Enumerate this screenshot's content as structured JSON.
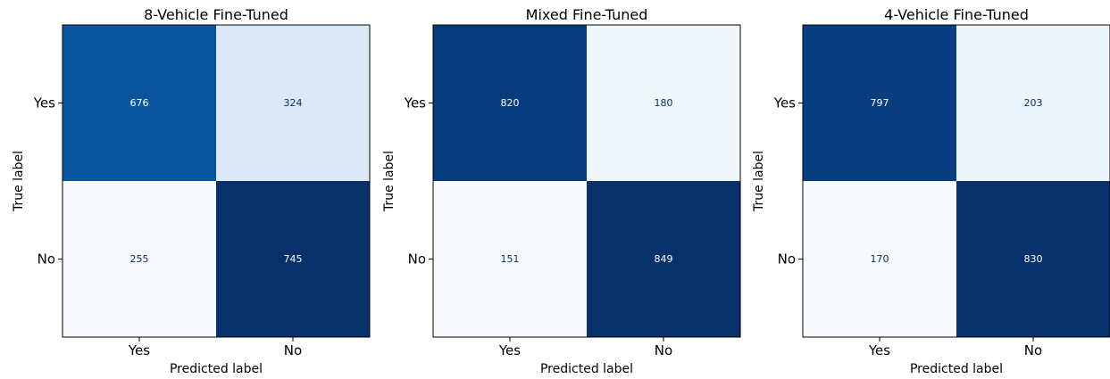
{
  "chart_data": [
    {
      "type": "heatmap",
      "title": "8-Vehicle Fine-Tuned",
      "xlabel": "Predicted label",
      "ylabel": "True label",
      "x_categories": [
        "Yes",
        "No"
      ],
      "y_categories": [
        "Yes",
        "No"
      ],
      "values": [
        [
          676,
          324
        ],
        [
          255,
          745
        ]
      ],
      "colormap": "Blues",
      "grid": false
    },
    {
      "type": "heatmap",
      "title": "Mixed Fine-Tuned",
      "xlabel": "Predicted label",
      "ylabel": "True label",
      "x_categories": [
        "Yes",
        "No"
      ],
      "y_categories": [
        "Yes",
        "No"
      ],
      "values": [
        [
          820,
          180
        ],
        [
          151,
          849
        ]
      ],
      "colormap": "Blues",
      "grid": false
    },
    {
      "type": "heatmap",
      "title": "4-Vehicle Fine-Tuned",
      "xlabel": "Predicted label",
      "ylabel": "True label",
      "x_categories": [
        "Yes",
        "No"
      ],
      "y_categories": [
        "Yes",
        "No"
      ],
      "values": [
        [
          797,
          203
        ],
        [
          170,
          830
        ]
      ],
      "colormap": "Blues",
      "grid": false
    }
  ]
}
